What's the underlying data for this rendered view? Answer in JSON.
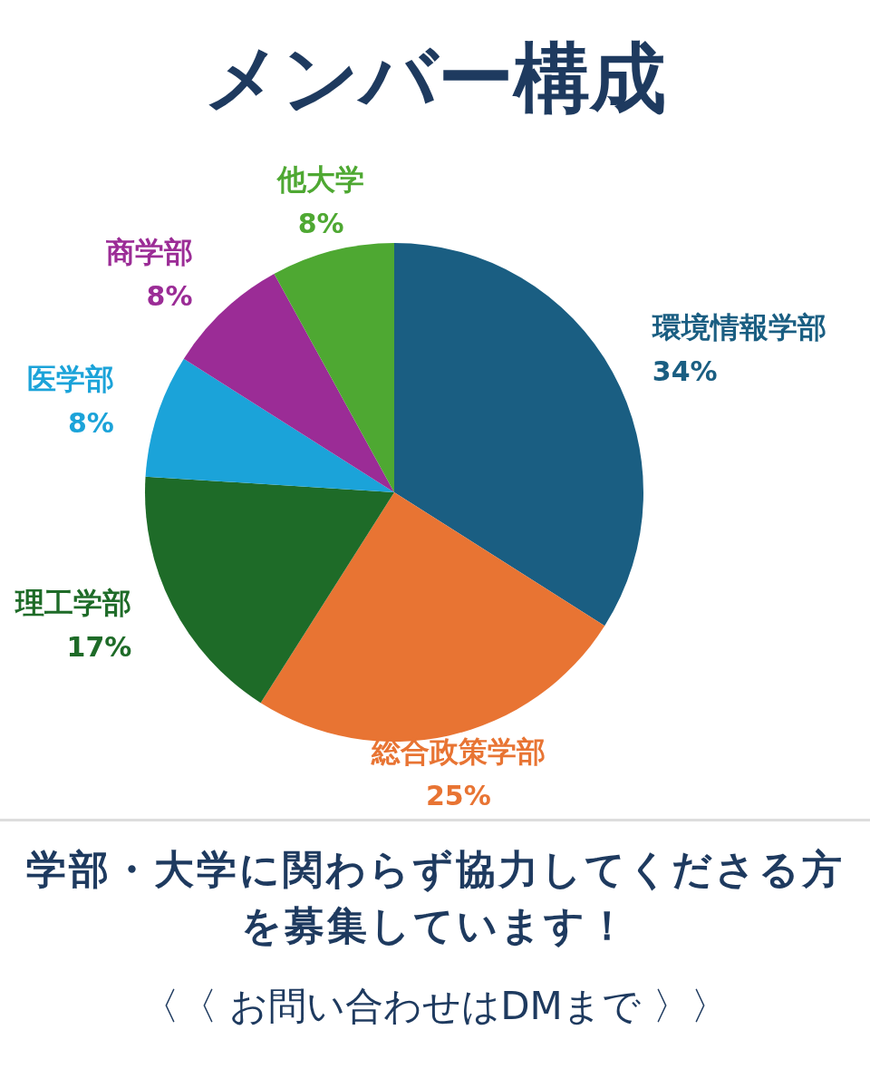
{
  "chart_data": {
    "type": "pie",
    "title": "メンバー構成",
    "categories": [
      "環境情報学部",
      "総合政策学部",
      "理工学部",
      "医学部",
      "商学部",
      "他大学"
    ],
    "values": [
      34,
      25,
      17,
      8,
      8,
      8
    ],
    "value_labels": [
      "34%",
      "25%",
      "17%",
      "8%",
      "8%",
      "8%"
    ],
    "colors": [
      "#1a5e82",
      "#e87433",
      "#1e6b28",
      "#1ba3d9",
      "#9b2c96",
      "#4ea832"
    ],
    "annotations": [
      "学部・大学に関わらず協力してくださる方を募集しています！",
      "〈〈 お問い合わせはDMまで 〉〉"
    ]
  }
}
